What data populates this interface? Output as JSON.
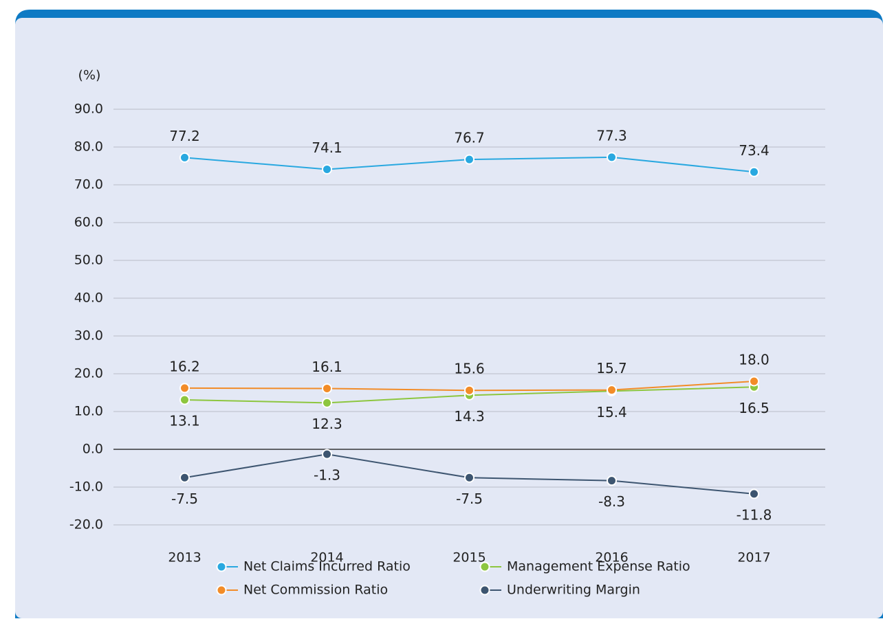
{
  "chart_data": {
    "type": "line",
    "y_label": "(%)",
    "categories": [
      "2013",
      "2014",
      "2015",
      "2016",
      "2017"
    ],
    "series": [
      {
        "name": "Net Claims Incurred Ratio",
        "color": "#29a8e0",
        "values": [
          77.2,
          74.1,
          76.7,
          77.3,
          73.4
        ],
        "value_labels": [
          "77.2",
          "74.1",
          "76.7",
          "77.3",
          "73.4"
        ],
        "label_position": "above"
      },
      {
        "name": "Management Expense Ratio",
        "color": "#8dc63f",
        "values": [
          13.1,
          12.3,
          14.3,
          15.4,
          16.5
        ],
        "value_labels": [
          "13.1",
          "12.3",
          "14.3",
          "15.4",
          "16.5"
        ],
        "label_position": "below"
      },
      {
        "name": "Net Commission Ratio",
        "color": "#f28c28",
        "values": [
          16.2,
          16.1,
          15.6,
          15.7,
          18.0
        ],
        "value_labels": [
          "16.2",
          "16.1",
          "15.6",
          "15.7",
          "18.0"
        ],
        "label_position": "above"
      },
      {
        "name": "Underwriting Margin",
        "color": "#3d5570",
        "values": [
          -7.5,
          -1.3,
          -7.5,
          -8.3,
          -11.8
        ],
        "value_labels": [
          "-7.5",
          "-1.3",
          "-7.5",
          "-8.3",
          "-11.8"
        ],
        "label_position": "below"
      }
    ],
    "ylim": [
      -20,
      90
    ],
    "yticks": [
      {
        "value": -20,
        "label": "-20.0"
      },
      {
        "value": -10,
        "label": "-10.0"
      },
      {
        "value": 0,
        "label": "0.0"
      },
      {
        "value": 10,
        "label": "10.0"
      },
      {
        "value": 20,
        "label": "20.0"
      },
      {
        "value": 30,
        "label": "30.0"
      },
      {
        "value": 40,
        "label": "40.0"
      },
      {
        "value": 50,
        "label": "50.0"
      },
      {
        "value": 60,
        "label": "60.0"
      },
      {
        "value": 70,
        "label": "70.0"
      },
      {
        "value": 80,
        "label": "80.0"
      },
      {
        "value": 90,
        "label": "90.0"
      }
    ],
    "grid": true,
    "legend": "bottom"
  }
}
